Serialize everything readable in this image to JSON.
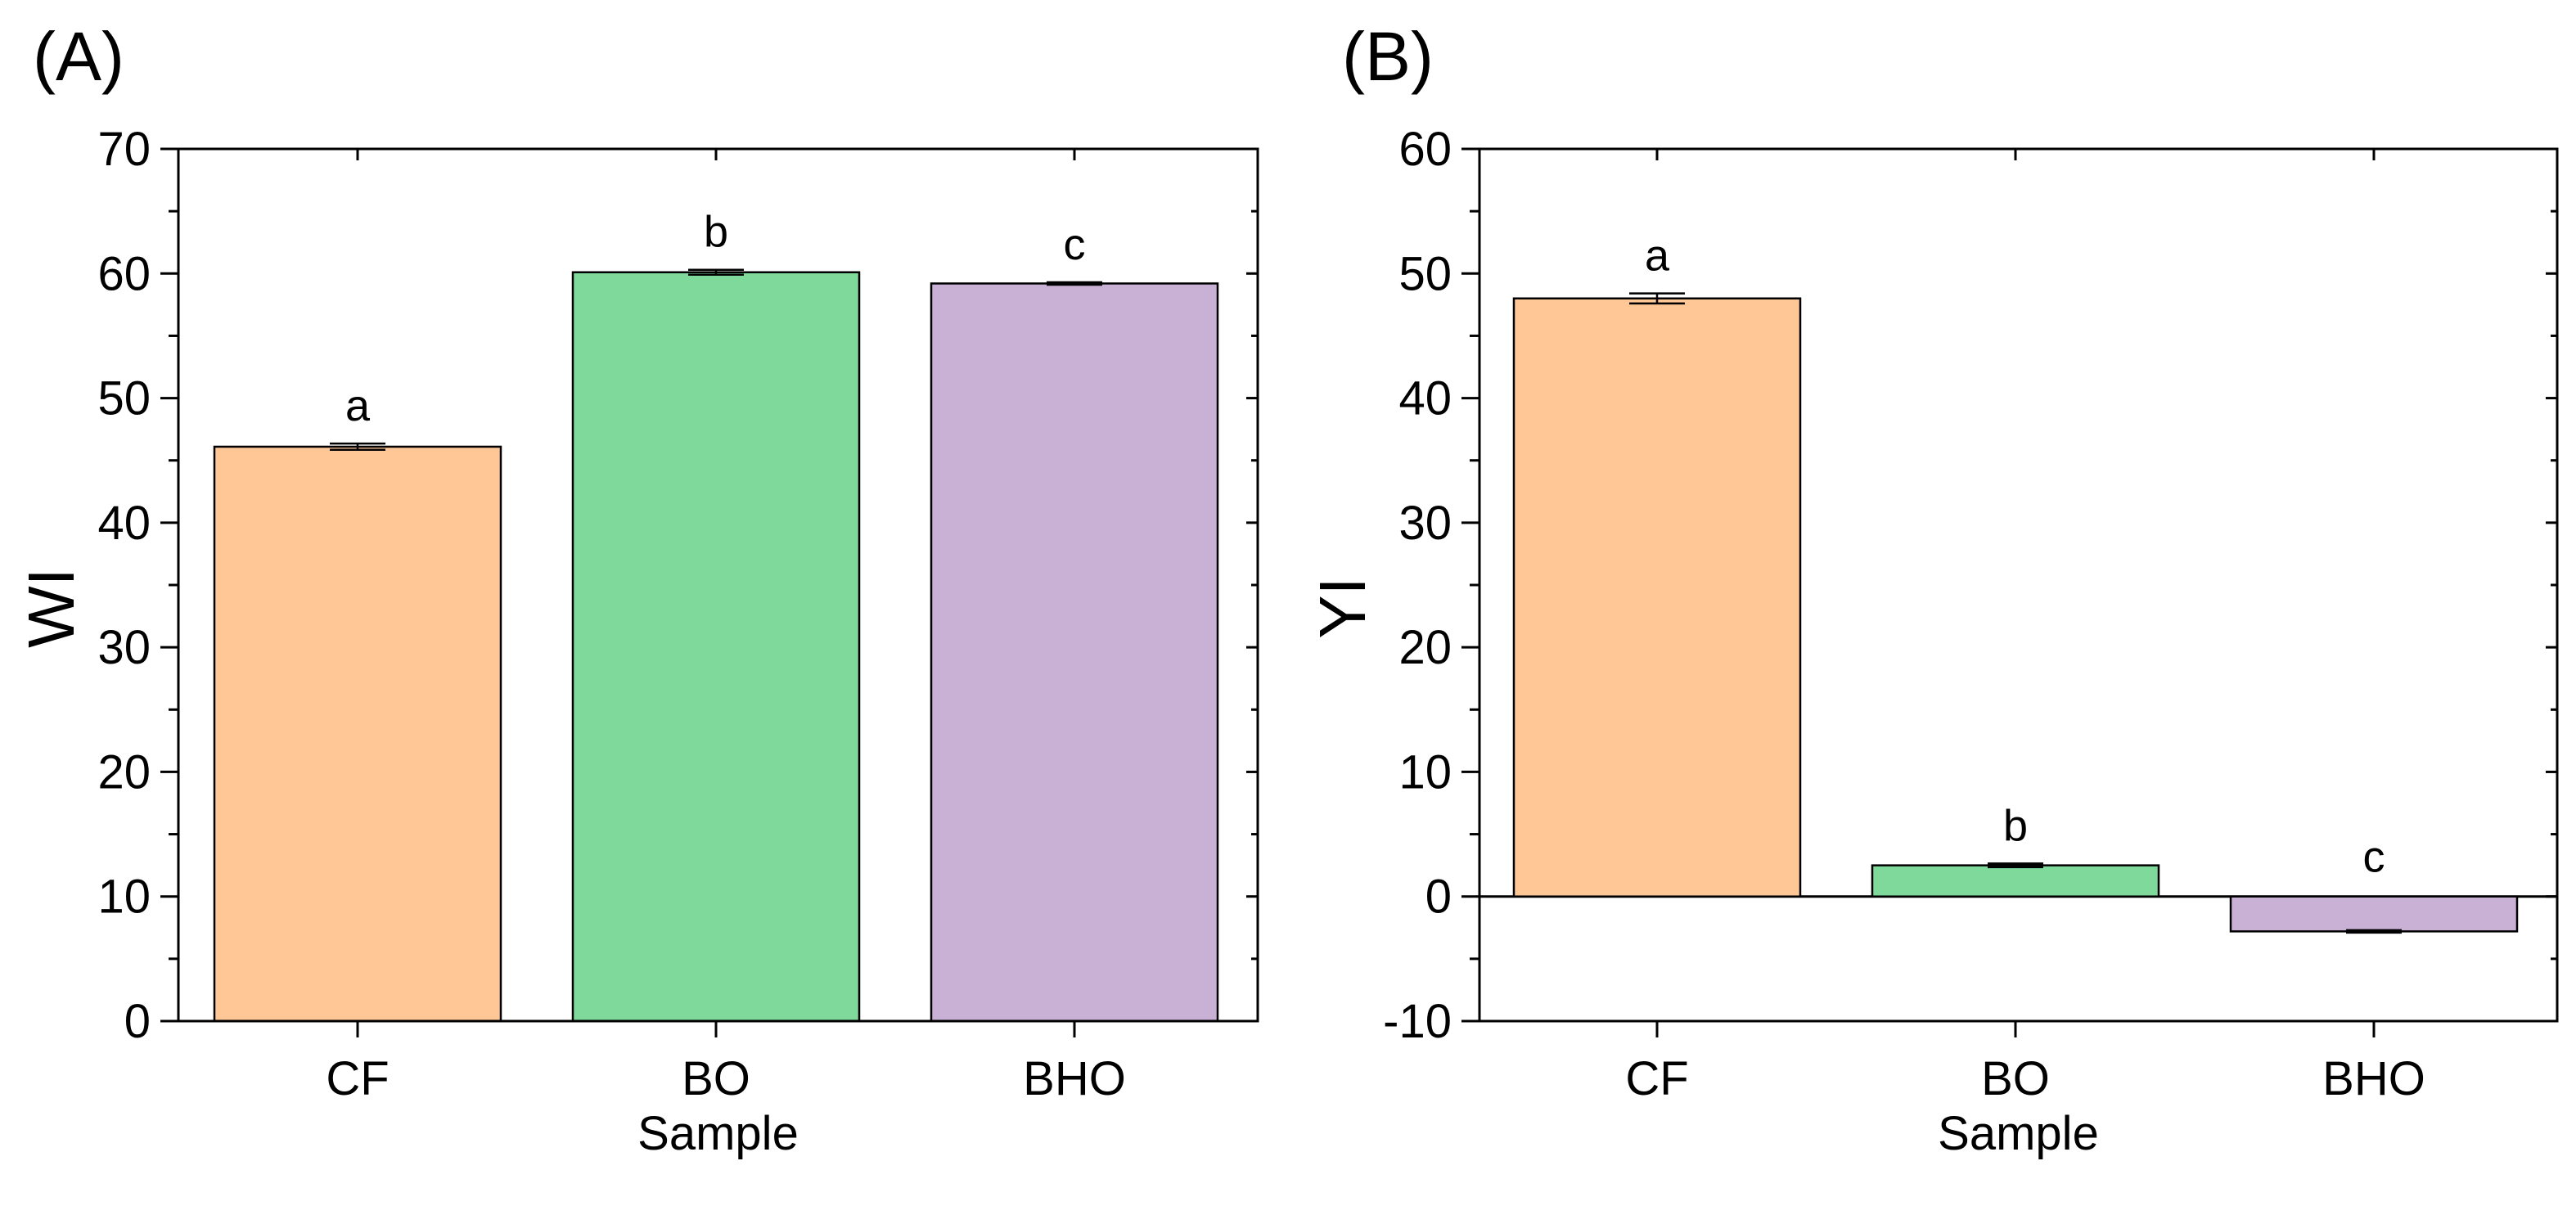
{
  "chart_data": [
    {
      "panel_label": "(A)",
      "type": "bar",
      "categories": [
        "CF",
        "BO",
        "BHO"
      ],
      "values": [
        46.1,
        60.1,
        59.2
      ],
      "errors": [
        0.25,
        0.2,
        0.1
      ],
      "significance_letters": [
        "a",
        "b",
        "c"
      ],
      "xlabel": "Sample",
      "ylabel": "WI",
      "ylim": [
        0,
        70
      ],
      "yticks": [
        0,
        10,
        20,
        30,
        40,
        50,
        60,
        70
      ],
      "ytick_labels": [
        "0",
        "10",
        "20",
        "30",
        "40",
        "50",
        "60",
        "70"
      ],
      "grid": false,
      "colors": [
        "#ffc696",
        "#7fd99b",
        "#c9b1d6"
      ]
    },
    {
      "panel_label": "(B)",
      "type": "bar",
      "categories": [
        "CF",
        "BO",
        "BHO"
      ],
      "values": [
        48.0,
        2.5,
        -2.8
      ],
      "errors": [
        0.4,
        0.15,
        0.1
      ],
      "significance_letters": [
        "a",
        "b",
        "c"
      ],
      "xlabel": "Sample",
      "ylabel": "YI",
      "ylim": [
        -10,
        60
      ],
      "yticks": [
        -10,
        0,
        10,
        20,
        30,
        40,
        50,
        60
      ],
      "ytick_labels": [
        "-10",
        "0",
        "10",
        "20",
        "30",
        "40",
        "50",
        "60"
      ],
      "grid": false,
      "colors": [
        "#ffc696",
        "#7fd99b",
        "#c9b1d6"
      ]
    }
  ]
}
